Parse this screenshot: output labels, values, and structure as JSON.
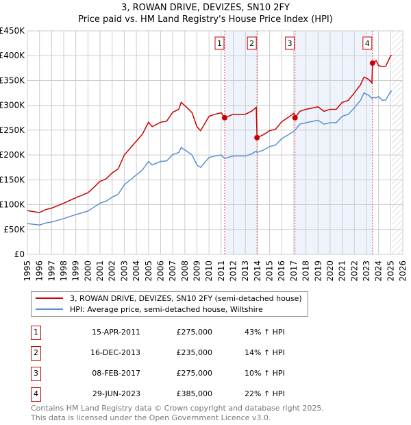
{
  "header": {
    "title": "3, ROWAN DRIVE, DEVIZES, SN10 2FY",
    "subtitle": "Price paid vs. HM Land Registry's House Price Index (HPI)"
  },
  "chart_data": {
    "type": "line",
    "title": "3, ROWAN DRIVE, DEVIZES, SN10 2FY",
    "subtitle": "Price paid vs. HM Land Registry's House Price Index (HPI)",
    "xlim": [
      1995,
      2026
    ],
    "ylim": [
      0,
      450000
    ],
    "x_ticks": [
      "1995",
      "1996",
      "1997",
      "1998",
      "1999",
      "2000",
      "2001",
      "2002",
      "2003",
      "2004",
      "2005",
      "2006",
      "2007",
      "2008",
      "2009",
      "2010",
      "2011",
      "2012",
      "2013",
      "2014",
      "2015",
      "2016",
      "2017",
      "2018",
      "2019",
      "2020",
      "2021",
      "2022",
      "2023",
      "2024",
      "2025",
      "2026"
    ],
    "y_ticks": [
      {
        "v": 0,
        "label": "£0"
      },
      {
        "v": 50000,
        "label": "£50K"
      },
      {
        "v": 100000,
        "label": "£100K"
      },
      {
        "v": 150000,
        "label": "£150K"
      },
      {
        "v": 200000,
        "label": "£200K"
      },
      {
        "v": 250000,
        "label": "£250K"
      },
      {
        "v": 300000,
        "label": "£300K"
      },
      {
        "v": 350000,
        "label": "£350K"
      },
      {
        "v": 400000,
        "label": "£400K"
      },
      {
        "v": 450000,
        "label": "£450K"
      }
    ],
    "grid": true,
    "forecast_hatch_from": 2025.1,
    "shaded_bands": [
      [
        2011.29,
        2013.96
      ],
      [
        2017.1,
        2023.5
      ]
    ],
    "x": [
      1995,
      1996,
      1996.5,
      1997,
      1998,
      1999,
      2000,
      2000.5,
      2001,
      2001.5,
      2002,
      2002.5,
      2003,
      2003.5,
      2004,
      2004.5,
      2005,
      2005.3,
      2006,
      2006.5,
      2007,
      2007.5,
      2007.7,
      2008.2,
      2008.6,
      2009,
      2009.3,
      2010,
      2010.5,
      2011,
      2011.29,
      2012,
      2013,
      2013.5,
      2013.9,
      2013.96,
      2014.5,
      2015,
      2015.5,
      2016,
      2016.5,
      2017,
      2017.1,
      2017.5,
      2018,
      2019,
      2019.5,
      2020,
      2020.5,
      2021,
      2021.5,
      2022,
      2022.5,
      2022.8,
      2023.2,
      2023.45,
      2023.5,
      2023.8,
      2024,
      2024.3,
      2024.6,
      2025,
      2025.1
    ],
    "series": [
      {
        "name": "3, ROWAN DRIVE, DEVIZES, SN10 2FY (semi-detached house)",
        "color": "#cc0000",
        "values": [
          88000,
          84000,
          90000,
          93000,
          103000,
          114000,
          124000,
          135000,
          147000,
          152000,
          164000,
          172000,
          200000,
          214000,
          228000,
          242000,
          266000,
          257000,
          266000,
          268000,
          286000,
          292000,
          306000,
          295000,
          285000,
          257000,
          249000,
          278000,
          282000,
          285000,
          275000,
          282000,
          282000,
          288000,
          296000,
          235000,
          241000,
          249000,
          252000,
          267000,
          275000,
          284000,
          275000,
          288000,
          292000,
          297000,
          288000,
          292000,
          292000,
          306000,
          310000,
          325000,
          341000,
          357000,
          352000,
          345000,
          385000,
          390000,
          380000,
          378000,
          379000,
          400000,
          400000
        ]
      },
      {
        "name": "HPI: Average price, semi-detached house, Wiltshire",
        "color": "#5b8fd0",
        "values": [
          62000,
          59000,
          63000,
          65000,
          72000,
          80000,
          87000,
          95000,
          103000,
          107000,
          115000,
          121000,
          140000,
          150000,
          160000,
          170000,
          187000,
          180000,
          187000,
          188000,
          201000,
          205000,
          215000,
          207000,
          200000,
          180000,
          175000,
          195000,
          198000,
          200000,
          193000,
          198000,
          198000,
          202000,
          208000,
          205000,
          210000,
          217000,
          220000,
          233000,
          240000,
          248000,
          250000,
          262000,
          265000,
          270000,
          262000,
          265000,
          265000,
          278000,
          282000,
          295000,
          310000,
          325000,
          320000,
          314000,
          316000,
          315000,
          318000,
          310000,
          311000,
          328000,
          328000
        ]
      }
    ],
    "sales": [
      {
        "label": "1",
        "x": 2011.29,
        "y": 275000
      },
      {
        "label": "2",
        "x": 2013.96,
        "y": 235000
      },
      {
        "label": "3",
        "x": 2017.1,
        "y": 275000
      },
      {
        "label": "4",
        "x": 2023.5,
        "y": 385000
      }
    ]
  },
  "legend": [
    {
      "label": "3, ROWAN DRIVE, DEVIZES, SN10 2FY (semi-detached house)",
      "color": "#cc0000"
    },
    {
      "label": "HPI: Average price, semi-detached house, Wiltshire",
      "color": "#5b8fd0"
    }
  ],
  "transactions": [
    {
      "num": "1",
      "date": "15-APR-2011",
      "price": "£275,000",
      "hpi": "43% ↑ HPI"
    },
    {
      "num": "2",
      "date": "16-DEC-2013",
      "price": "£235,000",
      "hpi": "14% ↑ HPI"
    },
    {
      "num": "3",
      "date": "08-FEB-2017",
      "price": "£275,000",
      "hpi": "10% ↑ HPI"
    },
    {
      "num": "4",
      "date": "29-JUN-2023",
      "price": "£385,000",
      "hpi": "22% ↑ HPI"
    }
  ],
  "footer": {
    "line1": "Contains HM Land Registry data © Crown copyright and database right 2025.",
    "line2": "This data is licensed under the Open Government Licence v3.0."
  }
}
